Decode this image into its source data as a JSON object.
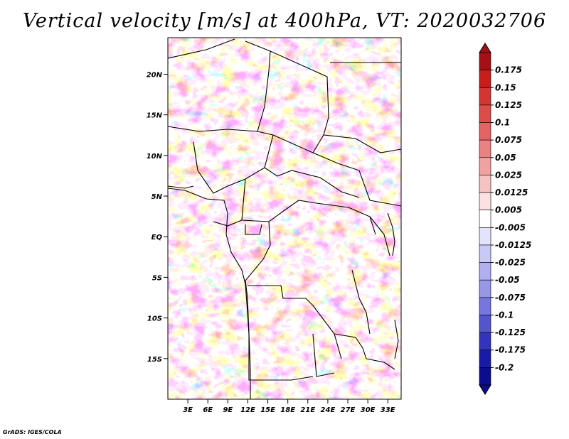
{
  "title": "Vertical velocity [m/s] at 400hPa, VT: 2020032706",
  "credit": "GrADS: IGES/COLA",
  "map": {
    "lat_ticks": [
      "20N",
      "15N",
      "10N",
      "5N",
      "EQ",
      "5S",
      "10S",
      "15S"
    ],
    "lon_ticks": [
      "3E",
      "6E",
      "9E",
      "12E",
      "15E",
      "18E",
      "21E",
      "24E",
      "27E",
      "30E",
      "33E"
    ],
    "lat_range": [
      -20,
      24.5
    ],
    "lon_range": [
      0,
      35
    ],
    "lat_tick_values": [
      20,
      15,
      10,
      5,
      0,
      -5,
      -10,
      -15
    ],
    "lon_tick_values": [
      3,
      6,
      9,
      12,
      15,
      18,
      21,
      24,
      27,
      30,
      33
    ]
  },
  "colorbar": {
    "labels": [
      "0.175",
      "0.15",
      "0.125",
      "0.1",
      "0.075",
      "0.05",
      "0.025",
      "0.0125",
      "0.005",
      "-0.005",
      "-0.0125",
      "-0.025",
      "-0.05",
      "-0.075",
      "-0.1",
      "-0.125",
      "-0.175",
      "-0.2"
    ],
    "colors": [
      "#a50f15",
      "#c81d1d",
      "#d63333",
      "#de4b4b",
      "#e46464",
      "#e98383",
      "#f0a2a2",
      "#f6c3c3",
      "#fbe1e1",
      "#ffffff",
      "#e3e3fb",
      "#c9c9f5",
      "#b0b0ee",
      "#9797e6",
      "#7676de",
      "#5454cf",
      "#3333bf",
      "#1a1aa8",
      "#0c0c90"
    ],
    "top_color": "#a50f15",
    "bottom_color": "#0c0c90"
  }
}
